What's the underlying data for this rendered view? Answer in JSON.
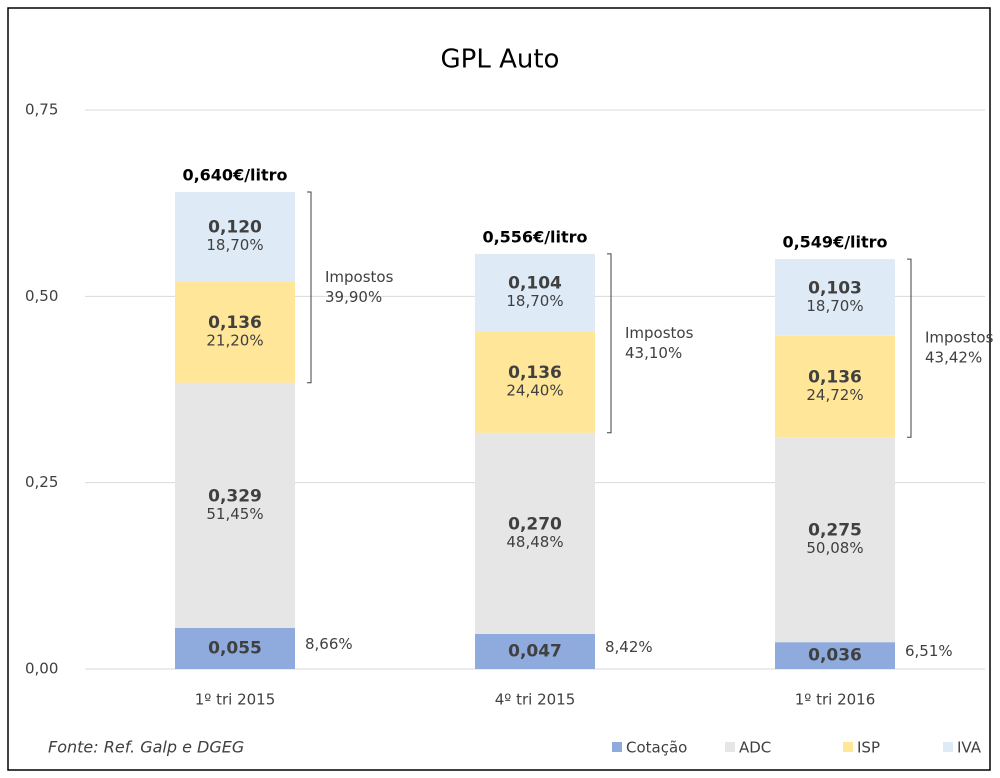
{
  "chart_data": {
    "type": "stacked_bar",
    "title": "GPL Auto",
    "categories": [
      "1º tri 2015",
      "4º tri 2015",
      "1º tri 2016"
    ],
    "series": [
      {
        "name": "Cotação",
        "color": "#8faadc",
        "values": [
          0.055,
          0.047,
          0.036
        ],
        "value_labels": [
          "0,055",
          "0,047",
          "0,036"
        ],
        "percent_labels": [
          "8,66%",
          "8,42%",
          "6,51%"
        ]
      },
      {
        "name": "ADC",
        "color": "#e7e6e6",
        "values": [
          0.329,
          0.27,
          0.275
        ],
        "value_labels": [
          "0,329",
          "0,270",
          "0,275"
        ],
        "percent_labels": [
          "51,45%",
          "48,48%",
          "50,08%"
        ]
      },
      {
        "name": "ISP",
        "color": "#ffe699",
        "values": [
          0.136,
          0.136,
          0.136
        ],
        "value_labels": [
          "0,136",
          "0,136",
          "0,136"
        ],
        "percent_labels": [
          "21,20%",
          "24,40%",
          "24,72%"
        ]
      },
      {
        "name": "IVA",
        "color": "#deebf7",
        "values": [
          0.12,
          0.104,
          0.103
        ],
        "value_labels": [
          "0,120",
          "0,104",
          "0,103"
        ],
        "percent_labels": [
          "18,70%",
          "18,70%",
          "18,70%"
        ]
      }
    ],
    "total_labels": [
      "0,640€/litro",
      "0,556€/litro",
      "0,549€/litro"
    ],
    "tax_annotations": [
      {
        "label": "Impostos",
        "value_label": "39,90%"
      },
      {
        "label": "Impostos",
        "value_label": "43,10%"
      },
      {
        "label": "Impostos",
        "value_label": "43,42%"
      }
    ],
    "source": "Fonte: Ref. Galp e DGEG",
    "ylim": [
      0,
      0.75
    ],
    "yticks": [
      {
        "value": 0,
        "label": "0,00"
      },
      {
        "value": 0.25,
        "label": "0,25"
      },
      {
        "value": 0.5,
        "label": "0,50"
      },
      {
        "value": 0.75,
        "label": "0,75"
      }
    ],
    "grid": true
  }
}
